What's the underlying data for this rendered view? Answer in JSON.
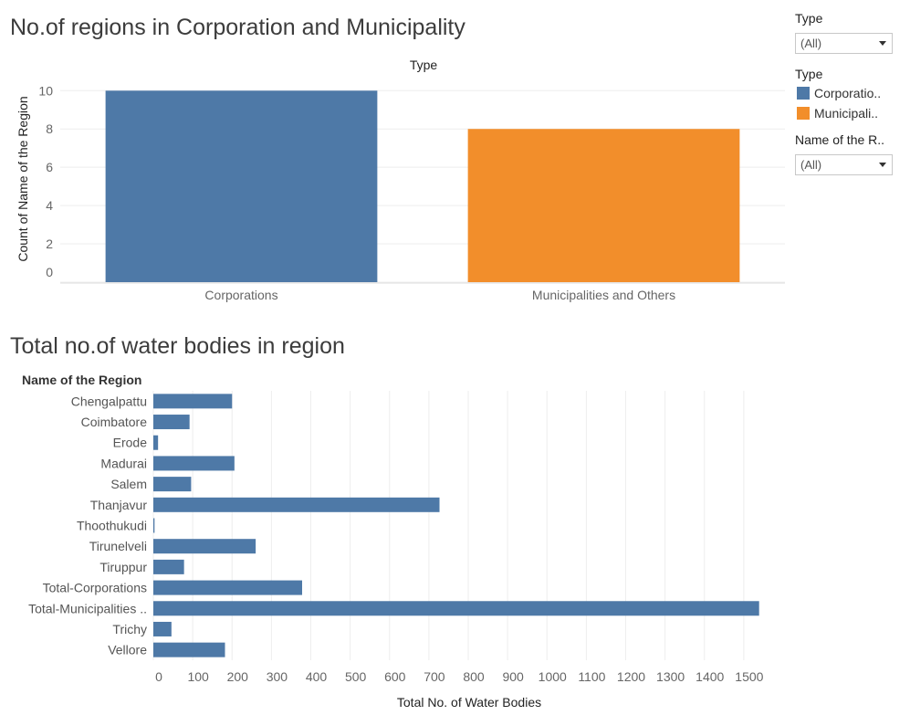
{
  "colors": {
    "corporations": "#4e79a7",
    "municipalities": "#f28e2b",
    "grid": "#eeeeee",
    "axis_text": "#666666"
  },
  "filters": {
    "type_filter": {
      "label": "Type",
      "value": "(All)"
    },
    "legend": {
      "label": "Type",
      "items": [
        "Corporatio..",
        "Municipali.."
      ]
    },
    "region_filter": {
      "label": "Name of the R..",
      "value": "(All)"
    }
  },
  "chart_data": [
    {
      "type": "bar",
      "title": "No.of regions in Corporation and Municipality",
      "header": "Type",
      "categories": [
        "Corporations",
        "Municipalities and Others"
      ],
      "values": [
        10,
        8
      ],
      "ylabel": "Count of Name of the Region",
      "xlabel": "",
      "yticks": [
        0,
        2,
        4,
        6,
        8,
        10
      ],
      "ylim": [
        0,
        10.3
      ],
      "grid": true
    },
    {
      "type": "bar",
      "orientation": "horizontal",
      "title": "Total no.of water bodies in region",
      "category_header": "Name of the Region",
      "categories": [
        "Chengalpattu",
        "Coimbatore",
        "Erode",
        "Madurai",
        "Salem",
        "Thanjavur",
        "Thoothukudi",
        "Tirunelveli",
        "Tiruppur",
        "Total-Corporations",
        "Total-Municipalities ..",
        "Trichy",
        "Vellore"
      ],
      "values": [
        200,
        92,
        12,
        206,
        96,
        727,
        3,
        260,
        78,
        378,
        1539,
        46,
        182
      ],
      "xlabel": "Total No. of Water Bodies",
      "xticks": [
        0,
        100,
        200,
        300,
        400,
        500,
        600,
        700,
        800,
        900,
        1000,
        1100,
        1200,
        1300,
        1400,
        1500
      ],
      "xlim": [
        0,
        1600
      ],
      "grid": true
    }
  ]
}
